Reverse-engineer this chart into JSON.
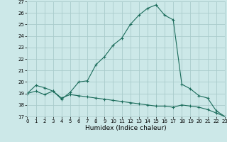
{
  "xlabel": "Humidex (Indice chaleur)",
  "bg_color": "#cce8e8",
  "grid_color": "#aacccc",
  "line_color": "#1a6b5a",
  "line1_x": [
    0,
    1,
    2,
    3,
    4,
    5,
    6,
    7,
    8,
    9,
    10,
    11,
    12,
    13,
    14,
    15,
    16,
    17,
    18,
    19,
    20,
    21,
    22,
    23
  ],
  "line1_y": [
    19.0,
    19.7,
    19.5,
    19.2,
    18.5,
    19.1,
    20.0,
    20.1,
    21.5,
    22.2,
    23.2,
    23.8,
    25.0,
    25.8,
    26.4,
    26.7,
    25.8,
    25.4,
    19.8,
    19.4,
    18.8,
    18.6,
    17.5,
    17.0
  ],
  "line2_x": [
    0,
    1,
    2,
    3,
    4,
    5,
    6,
    7,
    8,
    9,
    10,
    11,
    12,
    13,
    14,
    15,
    16,
    17,
    18,
    19,
    20,
    21,
    22,
    23
  ],
  "line2_y": [
    19.0,
    19.2,
    18.9,
    19.2,
    18.6,
    18.9,
    18.8,
    18.7,
    18.6,
    18.5,
    18.4,
    18.3,
    18.2,
    18.1,
    18.0,
    17.9,
    17.9,
    17.8,
    18.0,
    17.9,
    17.8,
    17.6,
    17.3,
    17.0
  ],
  "ylim": [
    17,
    27
  ],
  "xlim": [
    0,
    23
  ],
  "yticks": [
    17,
    18,
    19,
    20,
    21,
    22,
    23,
    24,
    25,
    26,
    27
  ],
  "xticks": [
    0,
    1,
    2,
    3,
    4,
    5,
    6,
    7,
    8,
    9,
    10,
    11,
    12,
    13,
    14,
    15,
    16,
    17,
    18,
    19,
    20,
    21,
    22,
    23
  ],
  "tick_fontsize": 5.0,
  "xlabel_fontsize": 6.5,
  "marker": "+",
  "markersize": 3.5,
  "linewidth": 0.8
}
